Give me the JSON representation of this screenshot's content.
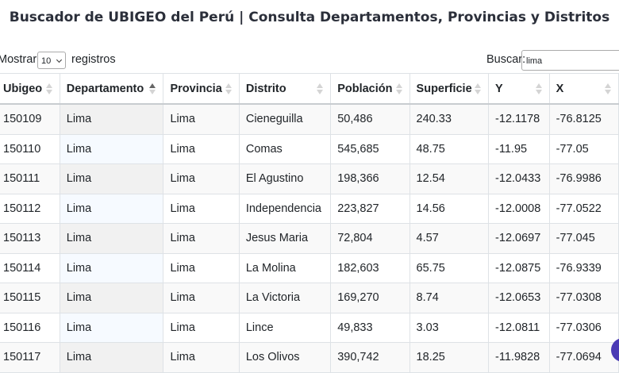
{
  "header": {
    "title": "Buscador de UBIGEO del Perú | Consulta Departamentos, Provincias y Distritos"
  },
  "controls": {
    "show_label": "Mostrar",
    "page_size": "10",
    "show_suffix": "registros",
    "search_label": "Buscar:",
    "search_value": "lima"
  },
  "table": {
    "columns": [
      "Ubigeo",
      "Departamento",
      "Provincia",
      "Distrito",
      "Población",
      "Superficie",
      "Y",
      "X"
    ],
    "rows": [
      [
        "150109",
        "Lima",
        "Lima",
        "Cieneguilla",
        "50,486",
        "240.33",
        "-12.1178",
        "-76.8125"
      ],
      [
        "150110",
        "Lima",
        "Lima",
        "Comas",
        "545,685",
        "48.75",
        "-11.95",
        "-77.05"
      ],
      [
        "150111",
        "Lima",
        "Lima",
        "El Agustino",
        "198,366",
        "12.54",
        "-12.0433",
        "-76.9986"
      ],
      [
        "150112",
        "Lima",
        "Lima",
        "Independencia",
        "223,827",
        "14.56",
        "-12.0008",
        "-77.0522"
      ],
      [
        "150113",
        "Lima",
        "Lima",
        "Jesus Maria",
        "72,804",
        "4.57",
        "-12.0697",
        "-77.045"
      ],
      [
        "150114",
        "Lima",
        "Lima",
        "La Molina",
        "182,603",
        "65.75",
        "-12.0875",
        "-76.9339"
      ],
      [
        "150115",
        "Lima",
        "Lima",
        "La Victoria",
        "169,270",
        "8.74",
        "-12.0653",
        "-77.0308"
      ],
      [
        "150116",
        "Lima",
        "Lima",
        "Lince",
        "49,833",
        "3.03",
        "-12.0811",
        "-77.0306"
      ],
      [
        "150117",
        "Lima",
        "Lima",
        "Los Olivos",
        "390,742",
        "18.25",
        "-11.9828",
        "-77.0694"
      ]
    ]
  }
}
